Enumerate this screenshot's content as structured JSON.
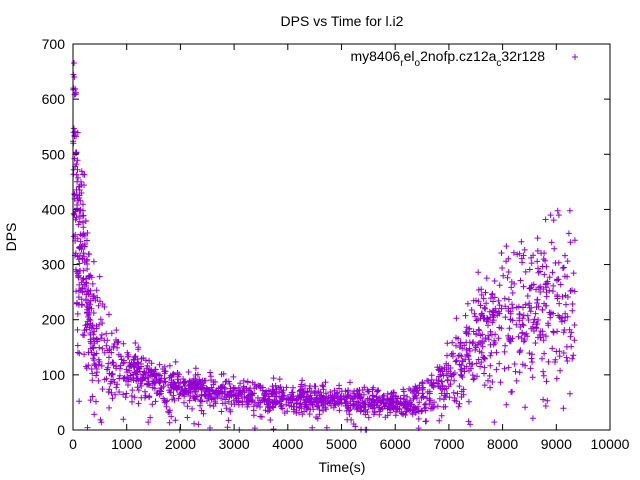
{
  "chart_data": {
    "type": "scatter",
    "title": "DPS vs Time for l.i2",
    "xlabel": "Time(s)",
    "ylabel": "DPS",
    "xlim": [
      0,
      10000
    ],
    "ylim": [
      0,
      700
    ],
    "xticks": [
      0,
      1000,
      2000,
      3000,
      4000,
      5000,
      6000,
      7000,
      8000,
      9000,
      10000
    ],
    "yticks": [
      0,
      100,
      200,
      300,
      400,
      500,
      600,
      700
    ],
    "grid": false,
    "legend_position": "top-right",
    "series": [
      {
        "name": "my8406_rel_o2nofp.cz12a_c32r128",
        "legend": {
          "prefix": "my8406",
          "sub1": "r",
          "mid": "el",
          "sub2": "o",
          "mid2": "2nofp.cz12a",
          "sub3": "c",
          "suffix": "32r128"
        },
        "marker": "+",
        "color": "#9400d3",
        "x_range": [
          0,
          9350
        ],
        "trend": [
          [
            0,
            580
          ],
          [
            50,
            440
          ],
          [
            100,
            370
          ],
          [
            200,
            300
          ],
          [
            300,
            230
          ],
          [
            400,
            180
          ],
          [
            500,
            155
          ],
          [
            700,
            130
          ],
          [
            1000,
            110
          ],
          [
            1500,
            90
          ],
          [
            2000,
            80
          ],
          [
            2500,
            72
          ],
          [
            3000,
            65
          ],
          [
            3500,
            60
          ],
          [
            4000,
            57
          ],
          [
            4500,
            55
          ],
          [
            5000,
            53
          ],
          [
            5500,
            52
          ],
          [
            6000,
            52
          ],
          [
            6500,
            55
          ],
          [
            6800,
            75
          ],
          [
            7000,
            100
          ],
          [
            7300,
            140
          ],
          [
            7600,
            180
          ],
          [
            8000,
            205
          ],
          [
            8500,
            220
          ],
          [
            9000,
            235
          ],
          [
            9350,
            240
          ]
        ],
        "spread": [
          [
            0,
            120
          ],
          [
            300,
            60
          ],
          [
            1000,
            25
          ],
          [
            2000,
            15
          ],
          [
            4000,
            12
          ],
          [
            6000,
            12
          ],
          [
            7000,
            30
          ],
          [
            8000,
            60
          ],
          [
            9350,
            80
          ]
        ],
        "n_points": 3500,
        "outlier_fraction": 0.06
      }
    ]
  }
}
